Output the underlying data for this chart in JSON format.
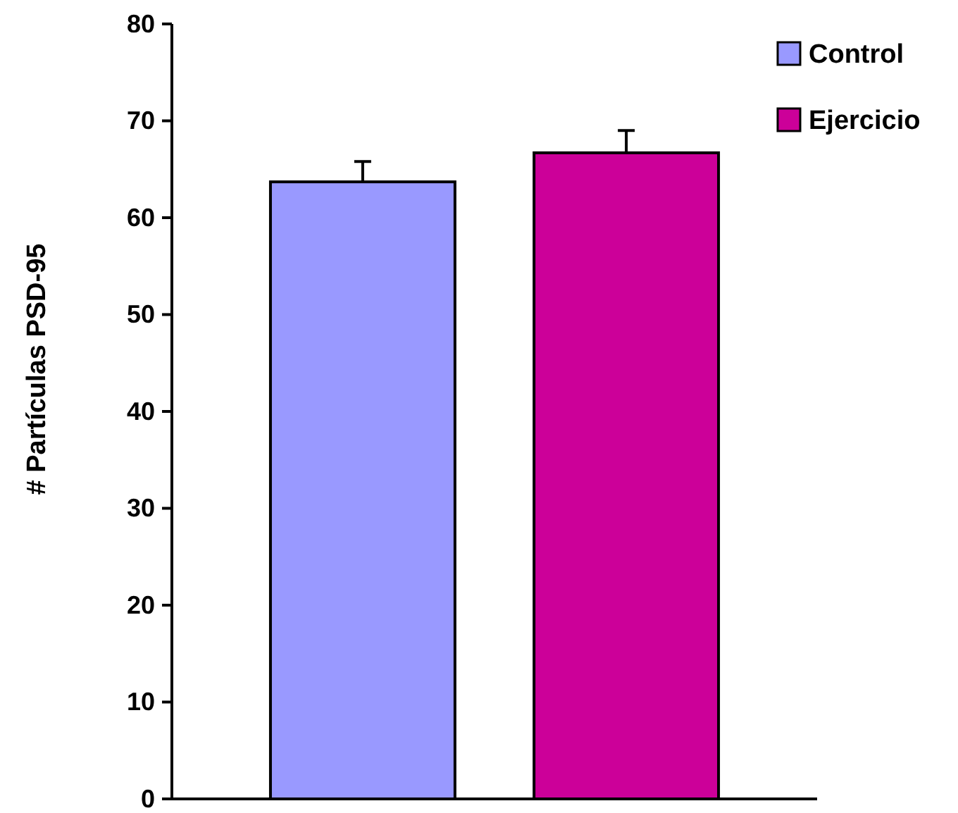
{
  "chart_data": {
    "type": "bar",
    "ylabel": "# Partículas PSD-95",
    "categories": [
      null
    ],
    "series": [
      {
        "name": "Control",
        "color": "#9999ff",
        "values": [
          63.7
        ],
        "errors": [
          [
            63.7,
            65.8
          ]
        ]
      },
      {
        "name": "Ejercicio",
        "color": "#cc0099",
        "values": [
          66.7
        ],
        "errors": [
          [
            66.7,
            69.0
          ]
        ]
      }
    ],
    "ylim": [
      0,
      80
    ],
    "yticks": [
      0,
      10,
      20,
      30,
      40,
      50,
      60,
      70,
      80
    ],
    "legend": "top right",
    "grid": false
  }
}
